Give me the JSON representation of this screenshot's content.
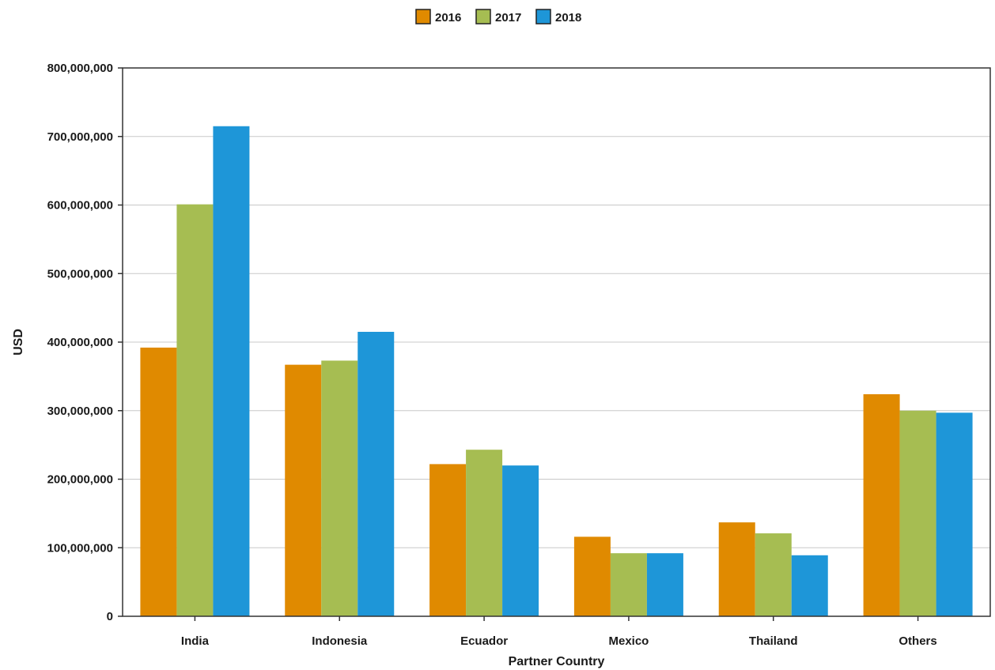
{
  "chart_data": {
    "type": "bar",
    "title": "",
    "xlabel": "Partner Country",
    "ylabel": "USD",
    "categories": [
      "India",
      "Indonesia",
      "Ecuador",
      "Mexico",
      "Thailand",
      "Others"
    ],
    "series": [
      {
        "name": "2016",
        "color": "#e08a00",
        "values": [
          392000000,
          367000000,
          222000000,
          116000000,
          137000000,
          324000000
        ]
      },
      {
        "name": "2017",
        "color": "#a6bd52",
        "values": [
          601000000,
          373000000,
          243000000,
          92000000,
          121000000,
          300000000
        ]
      },
      {
        "name": "2018",
        "color": "#1e96d8",
        "values": [
          715000000,
          415000000,
          220000000,
          92000000,
          89000000,
          297000000
        ]
      }
    ],
    "ylim": [
      0,
      800000000
    ],
    "yticks": [
      0,
      100000000,
      200000000,
      300000000,
      400000000,
      500000000,
      600000000,
      700000000,
      800000000
    ],
    "ytick_labels": [
      "0",
      "100,000,000",
      "200,000,000",
      "300,000,000",
      "400,000,000",
      "500,000,000",
      "600,000,000",
      "700,000,000",
      "800,000,000"
    ],
    "grid": true,
    "legend_position": "top-center"
  }
}
